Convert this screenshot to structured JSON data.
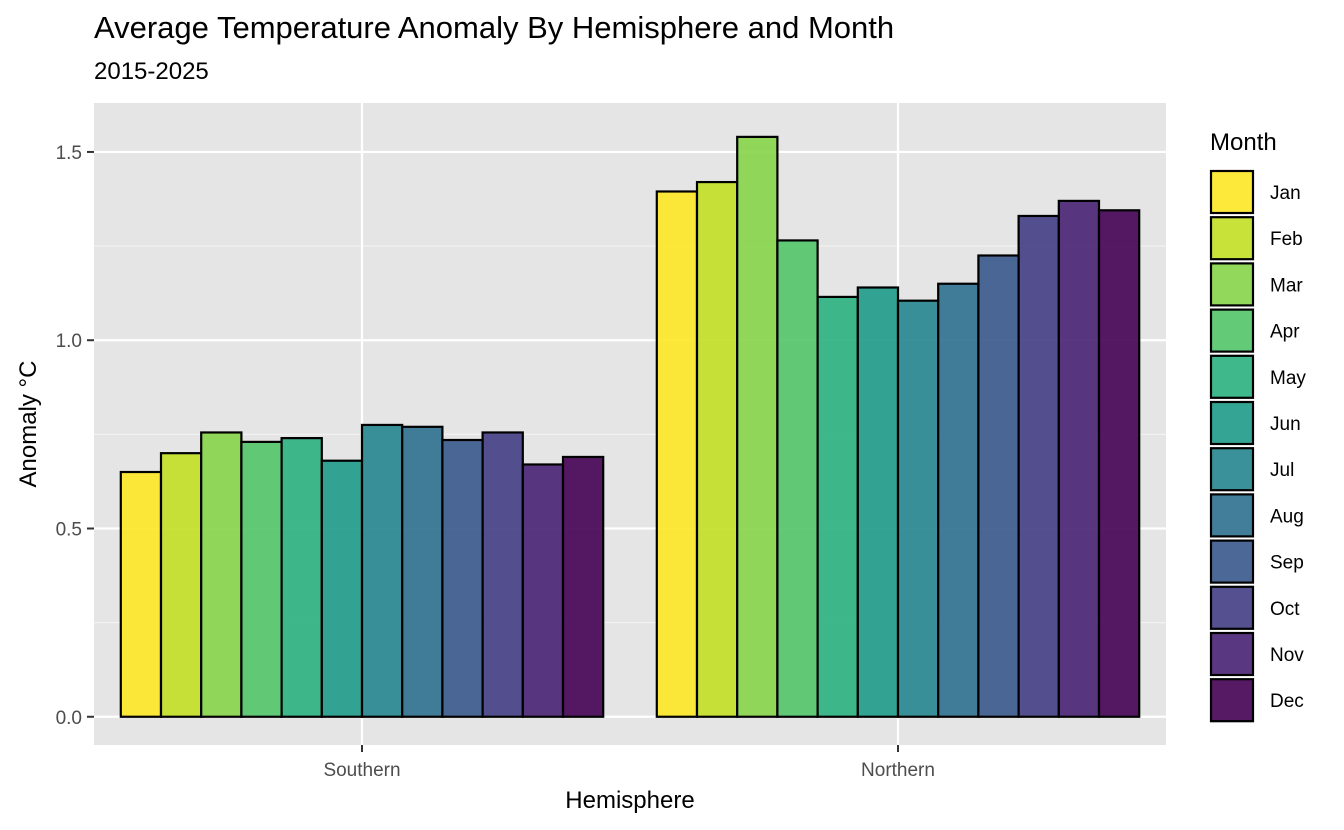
{
  "title": "Average Temperature Anomaly By Hemisphere and Month",
  "subtitle": "2015-2025",
  "chart_data": {
    "type": "bar",
    "title": "Average Temperature Anomaly By Hemisphere and Month",
    "subtitle": "2015-2025",
    "xlabel": "Hemisphere",
    "ylabel": "Anomaly °C",
    "categories": [
      "Southern",
      "Northern"
    ],
    "yticks": [
      "0.0",
      "0.5",
      "1.0",
      "1.5"
    ],
    "ylim": [
      -0.075,
      1.63
    ],
    "grid": true,
    "legend": {
      "title": "Month",
      "position": "right"
    },
    "series": [
      {
        "name": "Jan",
        "color": "#fde725",
        "values": [
          0.65,
          1.395
        ]
      },
      {
        "name": "Feb",
        "color": "#c2df23",
        "values": [
          0.7,
          1.42
        ]
      },
      {
        "name": "Mar",
        "color": "#86d549",
        "values": [
          0.755,
          1.54
        ]
      },
      {
        "name": "Apr",
        "color": "#52c569",
        "values": [
          0.73,
          1.265
        ]
      },
      {
        "name": "May",
        "color": "#2ab07f",
        "values": [
          0.74,
          1.115
        ]
      },
      {
        "name": "Jun",
        "color": "#1e9b8a",
        "values": [
          0.68,
          1.14
        ]
      },
      {
        "name": "Jul",
        "color": "#25858e",
        "values": [
          0.775,
          1.105
        ]
      },
      {
        "name": "Aug",
        "color": "#2d708e",
        "values": [
          0.77,
          1.15
        ]
      },
      {
        "name": "Sep",
        "color": "#38588c",
        "values": [
          0.735,
          1.225
        ]
      },
      {
        "name": "Oct",
        "color": "#433e85",
        "values": [
          0.755,
          1.33
        ]
      },
      {
        "name": "Nov",
        "color": "#482173",
        "values": [
          0.67,
          1.37
        ]
      },
      {
        "name": "Dec",
        "color": "#440154",
        "values": [
          0.69,
          1.345
        ]
      }
    ]
  }
}
